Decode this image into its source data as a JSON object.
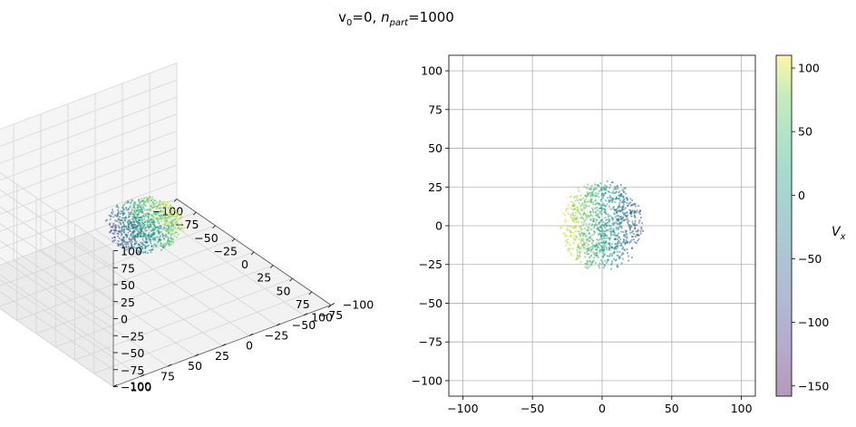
{
  "figure": {
    "title_prefix": "v",
    "title_sub0": "0",
    "title_eq": "=0, ",
    "title_n": "n",
    "title_sub_part": "part",
    "title_eq2": "=1000"
  },
  "chart_data": [
    {
      "type": "scatter3d",
      "xlim": [
        -100,
        100
      ],
      "ylim": [
        -100,
        100
      ],
      "zlim": [
        -100,
        100
      ],
      "x_ticks": [
        "−100",
        "−75",
        "−50",
        "−25",
        "0",
        "25",
        "50",
        "75",
        "100"
      ],
      "y_ticks": [
        "−100",
        "−75",
        "−50",
        "−25",
        "0",
        "25",
        "50",
        "75",
        "100"
      ],
      "z_ticks": [
        "−100",
        "−75",
        "−50",
        "−25",
        "0",
        "25",
        "50",
        "75",
        "100"
      ],
      "grid": true,
      "n_points": 1000,
      "cluster_center": [
        0,
        0,
        0
      ],
      "cluster_radius": 30
    },
    {
      "type": "scatter",
      "xlim": [
        -110,
        110
      ],
      "ylim": [
        -110,
        110
      ],
      "x_ticks": [
        -100,
        -50,
        0,
        50,
        100
      ],
      "y_ticks": [
        -100,
        -75,
        -50,
        -25,
        0,
        25,
        50,
        75,
        100
      ],
      "x_tick_labels": [
        "−100",
        "−50",
        "0",
        "50",
        "100"
      ],
      "y_tick_labels": [
        "−100",
        "−75",
        "−50",
        "−25",
        "0",
        "25",
        "50",
        "75",
        "100"
      ],
      "grid": true,
      "n_points": 1000,
      "cluster_center": [
        0,
        0
      ],
      "cluster_radius": 30,
      "color_variable": "V_x"
    }
  ],
  "colorbar": {
    "label_main": "V",
    "label_sub": "x",
    "range": [
      -158,
      110
    ],
    "ticks": [
      100,
      50,
      0,
      -50,
      -100,
      -150
    ],
    "tick_labels": [
      "100",
      "50",
      "0",
      "−50",
      "−100",
      "−150"
    ],
    "colormap": "viridis",
    "alpha": 0.4
  }
}
